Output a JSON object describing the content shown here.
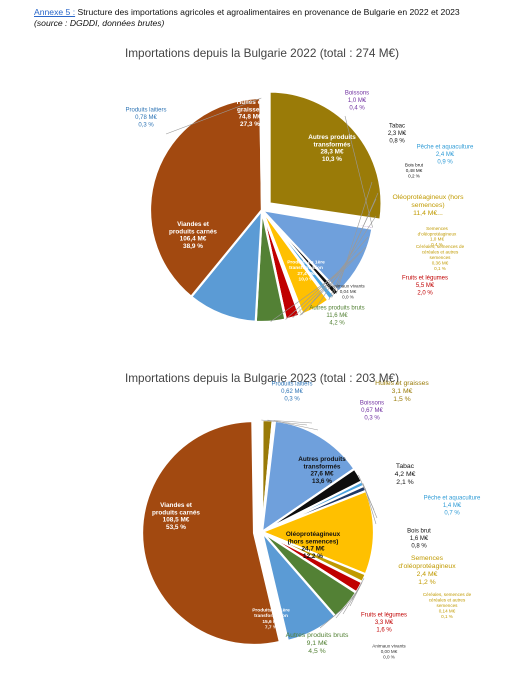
{
  "header": {
    "annex_label": "Annexe 5 :",
    "title_text": " Structure des importations agricoles et agroalimentaires en provenance de Bulgarie en 2022 et 2023",
    "source": "(source : DGDDI, données brutes)"
  },
  "colors": {
    "viandes": "#a24910",
    "huiles": "#9a7b08",
    "laitiers": "#5b9bd5",
    "boissons": "#7030a0",
    "autres_transformes": "#6fa0dc",
    "tabac": "#0d0d0d",
    "peche": "#4aa3df",
    "bois": "#1f3864",
    "oleo": "#ffc000",
    "semences": "#c09a00",
    "cereales": "#c8b400",
    "fruits": "#c00000",
    "animaux": "#7f7f7f",
    "autres_bruts": "#538135",
    "premiere_transfo": "#5b9bd5"
  },
  "chart_data": [
    {
      "type": "pie",
      "title": "Importations depuis la Bulgarie 2022 (total : 274 M€)",
      "total_label": "274 M€",
      "slices": [
        {
          "key": "huiles",
          "name": "Huiles et graisses",
          "value": 74.8,
          "value_label": "74,8 M€",
          "pct_label": "27,3 %",
          "label_pos": "inside",
          "explode": 1
        },
        {
          "key": "boissons",
          "name": "Boissons",
          "value": 1.0,
          "value_label": "1,0 M€",
          "pct_label": "0,4 %",
          "label_pos": "outside"
        },
        {
          "key": "autres_transformes",
          "name": "Autres produits transformés",
          "value": 28.3,
          "value_label": "28,3 M€",
          "pct_label": "10,3 %",
          "label_pos": "inside"
        },
        {
          "key": "tabac",
          "name": "Tabac",
          "value": 2.3,
          "value_label": "2,3 M€",
          "pct_label": "0,8 %",
          "label_pos": "outside"
        },
        {
          "key": "peche",
          "name": "Pêche et aquaculture",
          "value": 2.4,
          "value_label": "2,4 M€",
          "pct_label": "0,9 %",
          "label_pos": "outside"
        },
        {
          "key": "bois",
          "name": "Bois brut",
          "value": 0.48,
          "value_label": "0,48 M€",
          "pct_label": "0,2 %",
          "label_pos": "outside"
        },
        {
          "key": "oleo",
          "name": "Oléoprotéagineux (hors semences)",
          "value": 11.4,
          "value_label": "11,4 M€...",
          "pct_label": "",
          "label_pos": "outside"
        },
        {
          "key": "semences",
          "name": "Semences d'oléoprotéagineux",
          "value": 1.0,
          "value_label": "1,0 M€",
          "pct_label": "0,4 %",
          "label_pos": "outside"
        },
        {
          "key": "cereales",
          "name": "Céréales, semences de céréales et autres semences",
          "value": 0.36,
          "value_label": "0,36 M€",
          "pct_label": "0,1 %",
          "label_pos": "outside"
        },
        {
          "key": "fruits",
          "name": "Fruits et légumes",
          "value": 5.5,
          "value_label": "5,5 M€",
          "pct_label": "2,0 %",
          "label_pos": "outside"
        },
        {
          "key": "animaux",
          "name": "Animaux vivants",
          "value": 0.04,
          "value_label": "0,04 M€",
          "pct_label": "0,0 %",
          "label_pos": "outside"
        },
        {
          "key": "autres_bruts",
          "name": "Autres produits bruts",
          "value": 11.6,
          "value_label": "11,6 M€",
          "pct_label": "4,2 %",
          "label_pos": "outside"
        },
        {
          "key": "premiere_transfo",
          "name": "Produits de 1ère transformation",
          "value": 27.4,
          "value_label": "27,4 M€",
          "pct_label": "10,0 %",
          "label_pos": "inside"
        },
        {
          "key": "viandes",
          "name": "Viandes et produits carnés",
          "value": 106.4,
          "value_label": "106,4 M€",
          "pct_label": "38,9 %",
          "label_pos": "inside"
        },
        {
          "key": "laitiers",
          "name": "Produits laitiers",
          "value": 0.78,
          "value_label": "0,78 M€",
          "pct_label": "0,3 %",
          "label_pos": "outside"
        }
      ]
    },
    {
      "type": "pie",
      "title": "Importations depuis la Bulgarie 2023 (total : 203 M€)",
      "total_label": "203 M€",
      "slices": [
        {
          "key": "huiles",
          "name": "Huiles et graisses",
          "value": 3.1,
          "value_label": "3,1 M€",
          "pct_label": "1,5 %",
          "label_pos": "outside"
        },
        {
          "key": "boissons",
          "name": "Boissons",
          "value": 0.67,
          "value_label": "0,67 M€",
          "pct_label": "0,3 %",
          "label_pos": "outside"
        },
        {
          "key": "autres_transformes",
          "name": "Autres produits transformés",
          "value": 27.6,
          "value_label": "27,6 M€",
          "pct_label": "13,6 %",
          "label_pos": "inside"
        },
        {
          "key": "tabac",
          "name": "Tabac",
          "value": 4.2,
          "value_label": "4,2 M€",
          "pct_label": "2,1 %",
          "label_pos": "outside"
        },
        {
          "key": "peche",
          "name": "Pêche et aquaculture",
          "value": 1.4,
          "value_label": "1,4 M€",
          "pct_label": "0,7 %",
          "label_pos": "outside"
        },
        {
          "key": "bois",
          "name": "Bois brut",
          "value": 1.6,
          "value_label": "1,6 M€",
          "pct_label": "0,8 %",
          "label_pos": "outside"
        },
        {
          "key": "oleo",
          "name": "Oléoprotéagineux (hors semences)",
          "value": 24.7,
          "value_label": "24,7 M€",
          "pct_label": "12,2 %",
          "label_pos": "inside"
        },
        {
          "key": "semences",
          "name": "Semences d'oléoprotéagineux",
          "value": 2.4,
          "value_label": "2,4 M€",
          "pct_label": "1,2 %",
          "label_pos": "outside"
        },
        {
          "key": "cereales",
          "name": "Céréales, semences de céréales et autres semences",
          "value": 0.14,
          "value_label": "0,14 M€",
          "pct_label": "0,1 %",
          "label_pos": "outside"
        },
        {
          "key": "fruits",
          "name": "Fruits et légumes",
          "value": 3.3,
          "value_label": "3,3 M€",
          "pct_label": "1,6 %",
          "label_pos": "outside"
        },
        {
          "key": "animaux",
          "name": "Animaux vivants",
          "value": 0.0,
          "value_label": "0,00 M€",
          "pct_label": "0,0 %",
          "label_pos": "outside"
        },
        {
          "key": "autres_bruts",
          "name": "Autres produits bruts",
          "value": 9.1,
          "value_label": "9,1 M€",
          "pct_label": "4,5 %",
          "label_pos": "outside"
        },
        {
          "key": "premiere_transfo",
          "name": "Produits de 1ère transformation",
          "value": 15.6,
          "value_label": "15,6 M€",
          "pct_label": "7,7 %",
          "label_pos": "inside"
        },
        {
          "key": "viandes",
          "name": "Viandes et produits carnés",
          "value": 108.5,
          "value_label": "108,5 M€",
          "pct_label": "53,5 %",
          "label_pos": "inside",
          "explode": 1
        },
        {
          "key": "laitiers",
          "name": "Produits laitiers",
          "value": 0.62,
          "value_label": "0,62 M€",
          "pct_label": "0,3 %",
          "label_pos": "outside"
        }
      ]
    }
  ]
}
